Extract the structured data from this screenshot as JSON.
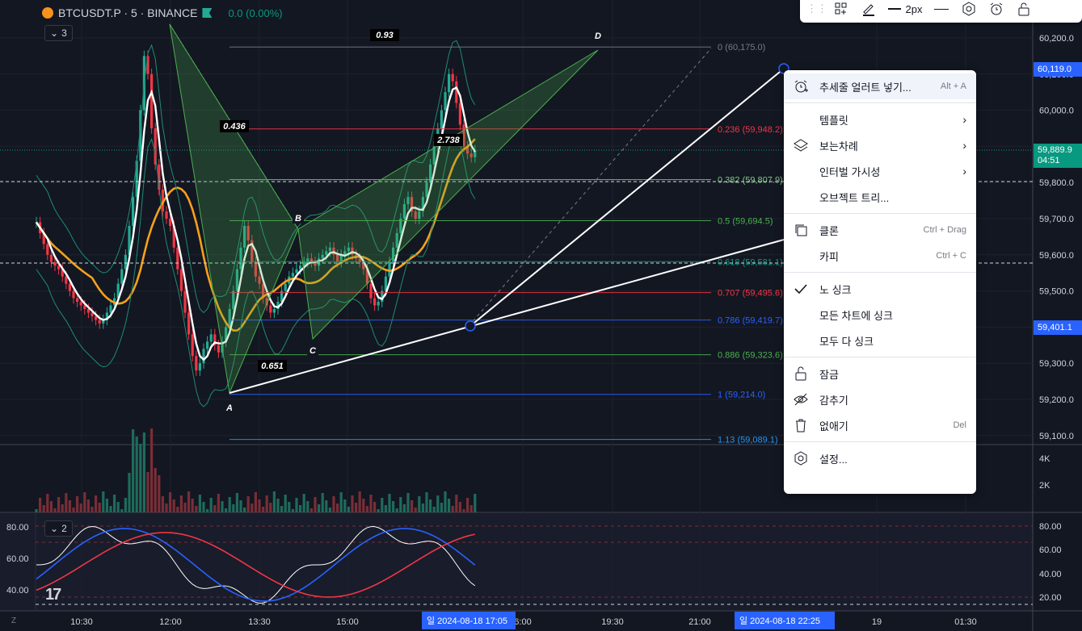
{
  "symbol": {
    "title": "BTCUSDT.P · 5 · BINANCE",
    "change": "0.0 (0.00%)"
  },
  "collapse_main": "3",
  "collapse_osc": "2",
  "toolbar": {
    "width_label": "2px"
  },
  "fib_levels": [
    {
      "label": "0 (60,175.0)",
      "price": 60175.0,
      "color": "#787b86"
    },
    {
      "label": "0.236 (59,948.2)",
      "price": 59948.2,
      "color": "#f23645"
    },
    {
      "label": "0.382 (59,807.9)",
      "price": 59807.9,
      "color": "#81c784"
    },
    {
      "label": "0.5 (59,694.5)",
      "price": 59694.5,
      "color": "#4caf50"
    },
    {
      "label": "0.618 (59,581.1)",
      "price": 59581.1,
      "color": "#089981"
    },
    {
      "label": "0.707 (59,495.6)",
      "price": 59495.6,
      "color": "#f23645"
    },
    {
      "label": "0.786 (59,419.7)",
      "price": 59419.7,
      "color": "#2962ff"
    },
    {
      "label": "0.886 (59,323.6)",
      "price": 59323.6,
      "color": "#4caf50"
    },
    {
      "label": "1 (59,214.0)",
      "price": 59214.0,
      "color": "#2962ff"
    },
    {
      "label": "1.13 (59,089.1)",
      "price": 59089.1,
      "color": "#2196f3"
    }
  ],
  "pattern": {
    "points": [
      "A",
      "B",
      "C",
      "D"
    ],
    "ratios": [
      "0.93",
      "0.436",
      "2.738",
      "0.651"
    ]
  },
  "price_axis": [
    "60,200.0",
    "60,100.0",
    "60,000.0",
    "59,900.0",
    "59,800.0",
    "59,700.0",
    "59,600.0",
    "59,500.0",
    "59,400.0",
    "59,300.0",
    "59,200.0",
    "59,100.0"
  ],
  "price_tags": {
    "top": "60,119.0",
    "current": "59,889.9",
    "countdown": "04:51",
    "bottom": "59,401.1"
  },
  "volume_axis": [
    "4K",
    "2K"
  ],
  "osc_axis_left": [
    "80.00",
    "60.00",
    "40.00"
  ],
  "osc_axis_right": [
    "80.00",
    "60.00",
    "40.00",
    "20.00"
  ],
  "time_axis": [
    "10:30",
    "12:00",
    "13:30",
    "15:00",
    "6:00",
    "19:30",
    "21:00",
    "19",
    "01:30"
  ],
  "time_tags": [
    "일 2024-08-18   17:05",
    "일 2024-08-18   22:25"
  ],
  "menu": {
    "items": [
      {
        "label": "추세줄 얼러트 넣기...",
        "shortcut": "Alt + A",
        "icon": "alarm-plus-icon"
      },
      {
        "label": "템플릿",
        "arrow": "›"
      },
      {
        "label": "보는차례",
        "arrow": "›",
        "icon": "layers-icon"
      },
      {
        "label": "인터벌 가시성",
        "arrow": "›"
      },
      {
        "label": "오브젝트 트리..."
      },
      {
        "label": "클론",
        "shortcut": "Ctrl + Drag",
        "icon": "clone-icon"
      },
      {
        "label": "카피",
        "shortcut": "Ctrl + C"
      },
      {
        "label": "노 싱크",
        "icon": "check-icon"
      },
      {
        "label": "모든 차트에 싱크"
      },
      {
        "label": "모두 다 싱크"
      },
      {
        "label": "잠금",
        "icon": "unlock-icon"
      },
      {
        "label": "감추기",
        "icon": "eye-off-icon"
      },
      {
        "label": "없애기",
        "shortcut": "Del",
        "icon": "trash-icon"
      },
      {
        "label": "설정...",
        "icon": "settings-icon"
      }
    ]
  },
  "colors": {
    "up": "#22ab94",
    "down": "#f23645",
    "ma_fast": "#ffffff",
    "ma_slow": "#f7a11a",
    "bands": "#1e8c72",
    "accent": "#2962ff"
  }
}
